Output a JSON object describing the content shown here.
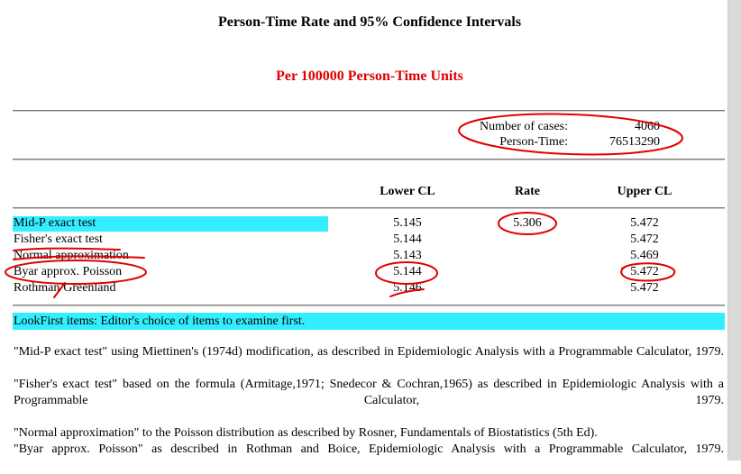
{
  "title": "Person-Time Rate and 95% Confidence Intervals",
  "subtitle": "Per 100000 Person-Time Units",
  "inputs": {
    "cases_label": "Number of cases:",
    "cases_value": "4060",
    "persontime_label": "Person-Time:",
    "persontime_value": "76513290"
  },
  "table": {
    "headers": [
      "Lower CL",
      "Rate",
      "Upper CL"
    ],
    "rows": [
      {
        "label": "Mid-P exact test",
        "lower": "5.145",
        "rate": "5.306",
        "upper": "5.472"
      },
      {
        "label": "Fisher's exact test",
        "lower": "5.144",
        "rate": "",
        "upper": "5.472"
      },
      {
        "label": "Normal approximation",
        "lower": "5.143",
        "rate": "",
        "upper": "5.469"
      },
      {
        "label": "Byar approx. Poisson",
        "lower": "5.144",
        "rate": "",
        "upper": "5.472"
      },
      {
        "label": "Rothman/Greenland",
        "lower": "5.146",
        "rate": "",
        "upper": "5.472"
      }
    ]
  },
  "lookfirst": "LookFirst items: Editor's choice of items to examine first.",
  "notes": [
    "\"Mid-P exact test\" using Miettinen's (1974d) modification, as described in Epidemiologic Analysis with a Programmable Calculator, 1979.",
    "\"Fisher's exact test\" based on the formula (Armitage,1971; Snedecor & Cochran,1965) as described in Epidemiologic Analysis with a Programmable Calculator, 1979.",
    "\"Normal approximation\" to the Poisson distribution as described by Rosner, Fundamentals of Biostatistics (5th Ed).",
    "\"Byar approx. Poisson\" as described in Rothman and Boice, Epidemiologic Analysis with a Programmable Calculator, 1979."
  ],
  "colors": {
    "highlight": "#33eeff",
    "subtitle": "#e00000",
    "annotation": "#e00000"
  }
}
